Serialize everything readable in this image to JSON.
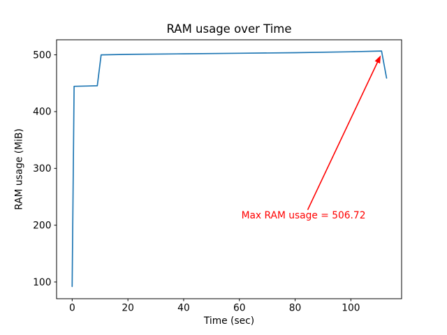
{
  "figure": {
    "background": "#ffffff"
  },
  "chart_data": {
    "type": "line",
    "title": "RAM usage over Time",
    "xlabel": "Time (sec)",
    "ylabel": "RAM usage (MiB)",
    "xlim": [
      -5.6,
      118.2
    ],
    "ylim": [
      70.5,
      526.5
    ],
    "x_ticks": [
      0,
      20,
      40,
      60,
      80,
      100
    ],
    "y_ticks": [
      100,
      200,
      300,
      400,
      500
    ],
    "grid": false,
    "legend": null,
    "series": [
      {
        "name": "RAM usage",
        "color": "#1f77b4",
        "points": [
          [
            0,
            92
          ],
          [
            0.7,
            444.5
          ],
          [
            9,
            445.5
          ],
          [
            10.4,
            500
          ],
          [
            20,
            500.8
          ],
          [
            40,
            501.8
          ],
          [
            60,
            502.8
          ],
          [
            80,
            503.8
          ],
          [
            100,
            505.3
          ],
          [
            111,
            506.72
          ],
          [
            112.8,
            459
          ]
        ]
      }
    ],
    "annotation": {
      "text": "Max RAM usage = 506.72",
      "color": "#ff0000",
      "max_value": 506.72,
      "text_center": [
        83,
        218
      ],
      "arrow_start": [
        84.5,
        227
      ],
      "arrow_end": [
        110.7,
        499
      ]
    }
  }
}
